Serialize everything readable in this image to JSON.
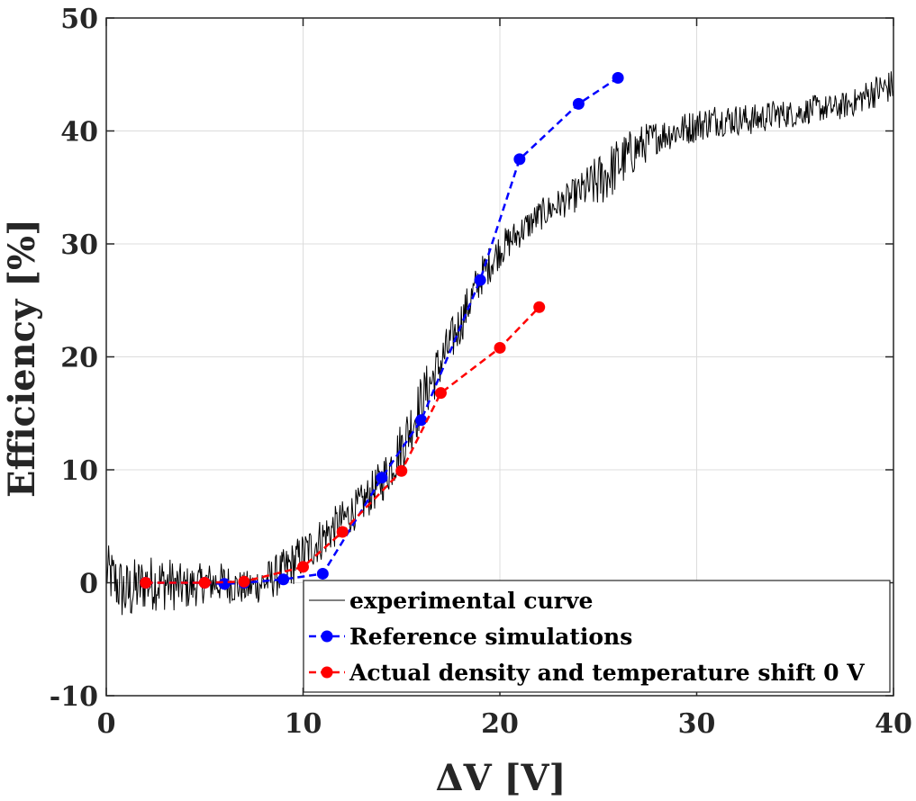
{
  "chart_data": {
    "type": "line",
    "title": "",
    "xlabel": "ΔV [V]",
    "ylabel": "Efficiency [%]",
    "xlim": [
      0,
      40
    ],
    "ylim": [
      -10,
      50
    ],
    "grid": true,
    "xticks": [
      0,
      10,
      20,
      30,
      40
    ],
    "yticks": [
      -10,
      0,
      10,
      20,
      30,
      40,
      50
    ],
    "xtick_labels": [
      "0",
      "10",
      "20",
      "30",
      "40"
    ],
    "ytick_labels": [
      "-10",
      "0",
      "10",
      "20",
      "30",
      "40",
      "50"
    ],
    "legend_position": "bottom-right",
    "series": [
      {
        "name": "experimental curve",
        "style": "solid-noisy",
        "color": "#000000",
        "x": [
          0,
          1,
          2,
          3,
          4,
          5,
          6,
          7,
          8,
          9,
          10,
          11,
          12,
          13,
          14,
          15,
          16,
          17,
          18,
          19,
          20,
          21,
          22,
          23,
          24,
          25,
          26,
          27,
          28,
          29,
          30,
          31,
          32,
          33,
          34,
          35,
          36,
          37,
          38,
          39,
          40
        ],
        "values": [
          1.0,
          -1.0,
          0.0,
          0.0,
          -0.5,
          0.0,
          0.0,
          -0.5,
          0.0,
          1.0,
          2.5,
          4.0,
          5.5,
          7.0,
          9.0,
          12.0,
          16.0,
          19.5,
          23.0,
          27.0,
          29.5,
          31.0,
          32.5,
          33.5,
          34.5,
          35.5,
          37.0,
          38.5,
          39.5,
          40.0,
          40.5,
          41.0,
          41.0,
          41.0,
          41.5,
          41.5,
          42.0,
          42.0,
          42.5,
          43.5,
          44.0
        ],
        "noise_amplitude": [
          2.5,
          3.0,
          2.5,
          2.5,
          2.0,
          1.8,
          1.8,
          1.5,
          1.8,
          2.0,
          2.0,
          2.0,
          1.8,
          1.8,
          2.0,
          2.5,
          2.5,
          2.2,
          2.0,
          1.8,
          1.6,
          1.4,
          1.4,
          1.4,
          1.6,
          2.5,
          2.5,
          2.0,
          1.5,
          1.5,
          1.5,
          1.5,
          1.4,
          1.4,
          1.3,
          1.2,
          1.2,
          1.2,
          1.2,
          1.5,
          1.5
        ]
      },
      {
        "name": "Reference simulations",
        "style": "dashed-markers",
        "color": "#0000ff",
        "x": [
          2,
          5,
          6,
          7,
          9,
          11,
          14,
          16,
          19,
          21,
          24,
          26
        ],
        "values": [
          0,
          0,
          -0.1,
          0,
          0.3,
          0.8,
          9.3,
          14.4,
          26.8,
          37.5,
          42.4,
          44.7
        ]
      },
      {
        "name": "Actual density and temperature shift 0 V",
        "style": "dashed-markers",
        "color": "#ff0000",
        "x": [
          2,
          5,
          7,
          10,
          12,
          15,
          17,
          20,
          22
        ],
        "values": [
          0,
          0,
          0.1,
          1.4,
          4.5,
          9.9,
          16.8,
          20.8,
          24.4
        ]
      }
    ]
  }
}
